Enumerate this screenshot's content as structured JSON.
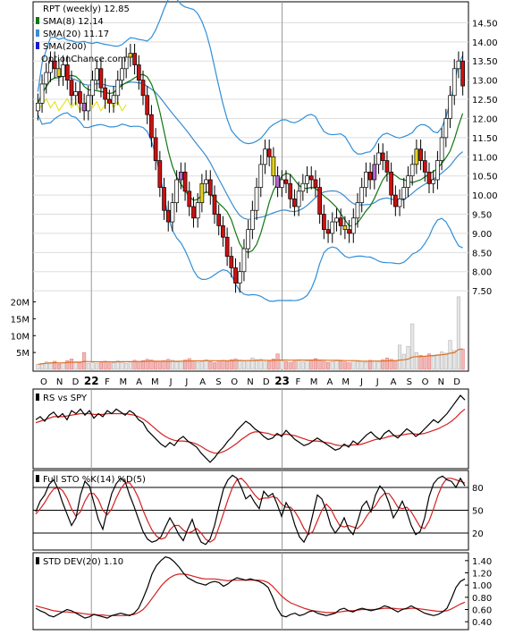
{
  "header": {
    "ticker_line": "RPT (weekly) 12.85",
    "sma8_label": "SMA(8) 12.14",
    "sma20_label": "SMA(20) 11.17",
    "sma200_label": "SMA(200)",
    "brand": "OptionChance.com"
  },
  "colors": {
    "up_candle": "#ffffff",
    "down_candle": "#cc1111",
    "mixed_up": "#e5d21a",
    "purple_candle": "#b666d2",
    "sma8": "#117711",
    "sma20": "#3a8ccf",
    "sma200": "#1a1acc",
    "bollinger": "#2f8fd8",
    "yellow_line": "#e0e000",
    "volume_up": "#e6e6e6",
    "volume_down": "#f3b6b6",
    "volume_avg": "#e07020",
    "rs_line": "#000000",
    "rs_ma": "#d42020",
    "stoch_k": "#000000",
    "stoch_d": "#d42020",
    "std_line": "#000000",
    "std_ma": "#d42020"
  },
  "chart_data": [
    {
      "type": "candlestick",
      "title": "RPT (weekly) 12.85",
      "ylim": [
        7.2,
        15.0
      ],
      "y_ticks": [
        "7.50",
        "8.00",
        "8.50",
        "9.00",
        "9.50",
        "10.00",
        "10.50",
        "11.00",
        "11.50",
        "12.00",
        "12.50",
        "13.00",
        "13.50",
        "14.00",
        "14.50"
      ],
      "y_tick_values": [
        7.5,
        8.0,
        8.5,
        9.0,
        9.5,
        10.0,
        10.5,
        11.0,
        11.5,
        12.0,
        12.5,
        13.0,
        13.5,
        14.0,
        14.5
      ],
      "x_ticks": [
        "O",
        "N",
        "D",
        "22",
        "F",
        "M",
        "A",
        "M",
        "J",
        "J",
        "A",
        "S",
        "O",
        "N",
        "D",
        "23",
        "F",
        "M",
        "A",
        "M",
        "J",
        "J",
        "A",
        "S",
        "O",
        "N",
        "D"
      ],
      "close": [
        12.4,
        12.9,
        13.2,
        13.5,
        13.3,
        13.1,
        13.4,
        13.0,
        12.6,
        12.7,
        12.4,
        12.2,
        12.6,
        13.0,
        13.3,
        12.8,
        12.5,
        12.4,
        12.6,
        13.0,
        13.3,
        13.6,
        13.7,
        13.4,
        13.0,
        12.6,
        12.1,
        11.5,
        10.9,
        10.2,
        9.6,
        9.3,
        9.8,
        10.4,
        10.6,
        10.1,
        9.7,
        9.4,
        9.8,
        10.3,
        10.4,
        10.0,
        9.5,
        9.2,
        8.9,
        8.4,
        8.1,
        7.7,
        8.0,
        8.6,
        9.1,
        9.6,
        10.2,
        10.8,
        11.2,
        11.0,
        10.5,
        10.2,
        10.4,
        10.3,
        9.9,
        9.7,
        10.1,
        10.3,
        10.5,
        10.4,
        10.2,
        9.5,
        9.1,
        9.0,
        9.3,
        9.4,
        9.2,
        9.1,
        9.0,
        9.4,
        9.8,
        10.2,
        10.6,
        10.4,
        10.8,
        11.1,
        10.9,
        10.6,
        10.0,
        9.7,
        9.9,
        10.2,
        10.5,
        10.8,
        11.2,
        10.9,
        10.6,
        10.3,
        10.4,
        10.9,
        11.5,
        12.0,
        12.6,
        13.3,
        13.5,
        12.85
      ],
      "volume_ylabel_ticks": [
        "20M",
        "15M",
        "10M",
        "5M"
      ],
      "volume_ylim": [
        0,
        22
      ],
      "volume": [
        1.5,
        1.8,
        2.2,
        2.0,
        2.4,
        1.6,
        2.0,
        2.6,
        3.1,
        2.2,
        1.9,
        5.0,
        1.8,
        2.1,
        1.7,
        2.3,
        2.4,
        1.9,
        2.0,
        2.5,
        2.1,
        1.8,
        2.2,
        2.7,
        2.4,
        2.6,
        3.0,
        2.8,
        2.5,
        2.3,
        2.6,
        3.0,
        2.7,
        2.2,
        2.4,
        2.8,
        3.2,
        2.6,
        2.1,
        2.4,
        2.9,
        2.3,
        2.0,
        2.5,
        2.7,
        2.4,
        2.9,
        3.1,
        2.8,
        2.5,
        2.7,
        3.4,
        2.9,
        3.0,
        2.2,
        2.4,
        3.1,
        4.6,
        2.6,
        2.3,
        2.1,
        2.4,
        2.8,
        2.2,
        2.5,
        2.6,
        3.2,
        2.7,
        2.4,
        2.1,
        2.3,
        2.8,
        2.5,
        2.2,
        2.0,
        2.6,
        2.3,
        2.4,
        2.1,
        2.7,
        2.5,
        2.2,
        2.9,
        3.4,
        3.0,
        2.6,
        7.2,
        4.5,
        6.8,
        13.5,
        5.0,
        4.2,
        3.8,
        4.6,
        3.9,
        4.4,
        5.2,
        4.8,
        8.6,
        5.6,
        21.5,
        6.0
      ]
    },
    {
      "type": "line",
      "title": "RS vs SPY",
      "series": [
        {
          "values": [
            0.62,
            0.66,
            0.6,
            0.68,
            0.72,
            0.65,
            0.7,
            0.62,
            0.74,
            0.7,
            0.76,
            0.68,
            0.74,
            0.64,
            0.7,
            0.66,
            0.74,
            0.7,
            0.76,
            0.72,
            0.68,
            0.74,
            0.7,
            0.62,
            0.58,
            0.48,
            0.42,
            0.36,
            0.3,
            0.26,
            0.32,
            0.28,
            0.36,
            0.4,
            0.34,
            0.3,
            0.26,
            0.18,
            0.12,
            0.06,
            0.12,
            0.2,
            0.26,
            0.34,
            0.4,
            0.48,
            0.54,
            0.6,
            0.56,
            0.5,
            0.46,
            0.4,
            0.36,
            0.38,
            0.44,
            0.4,
            0.48,
            0.42,
            0.36,
            0.32,
            0.28,
            0.3,
            0.34,
            0.38,
            0.34,
            0.3,
            0.26,
            0.22,
            0.24,
            0.3,
            0.26,
            0.34,
            0.3,
            0.36,
            0.42,
            0.46,
            0.4,
            0.36,
            0.44,
            0.48,
            0.42,
            0.38,
            0.44,
            0.5,
            0.46,
            0.4,
            0.44,
            0.5,
            0.56,
            0.62,
            0.58,
            0.64,
            0.7,
            0.78,
            0.86,
            0.94,
            0.88
          ]
        },
        {
          "values": [
            0.58,
            0.6,
            0.62,
            0.64,
            0.66,
            0.66,
            0.66,
            0.67,
            0.68,
            0.69,
            0.7,
            0.7,
            0.7,
            0.69,
            0.69,
            0.69,
            0.7,
            0.7,
            0.7,
            0.7,
            0.7,
            0.69,
            0.68,
            0.66,
            0.63,
            0.59,
            0.54,
            0.49,
            0.44,
            0.4,
            0.37,
            0.35,
            0.34,
            0.34,
            0.33,
            0.32,
            0.3,
            0.27,
            0.23,
            0.2,
            0.18,
            0.18,
            0.2,
            0.23,
            0.27,
            0.31,
            0.36,
            0.4,
            0.44,
            0.46,
            0.46,
            0.45,
            0.44,
            0.42,
            0.42,
            0.42,
            0.43,
            0.42,
            0.41,
            0.39,
            0.37,
            0.35,
            0.34,
            0.34,
            0.33,
            0.32,
            0.31,
            0.29,
            0.28,
            0.28,
            0.28,
            0.29,
            0.29,
            0.3,
            0.32,
            0.34,
            0.36,
            0.37,
            0.38,
            0.4,
            0.41,
            0.41,
            0.42,
            0.43,
            0.44,
            0.43,
            0.43,
            0.44,
            0.46,
            0.48,
            0.5,
            0.53,
            0.56,
            0.6,
            0.65,
            0.71,
            0.76
          ]
        }
      ]
    },
    {
      "type": "line",
      "title": "Full STO %K(14) %D(5)",
      "ylim": [
        0,
        100
      ],
      "y_ticks": [
        "80",
        "50",
        "20"
      ],
      "y_tick_values": [
        80,
        50,
        20
      ],
      "series": [
        {
          "values": [
            48,
            62,
            70,
            84,
            90,
            78,
            60,
            45,
            30,
            40,
            70,
            88,
            82,
            60,
            38,
            25,
            50,
            72,
            85,
            92,
            88,
            70,
            55,
            38,
            22,
            12,
            8,
            10,
            15,
            28,
            40,
            30,
            18,
            10,
            25,
            38,
            20,
            8,
            5,
            12,
            30,
            55,
            78,
            90,
            96,
            92,
            80,
            65,
            70,
            60,
            52,
            75,
            68,
            72,
            58,
            42,
            60,
            50,
            30,
            15,
            8,
            20,
            45,
            70,
            65,
            50,
            30,
            20,
            28,
            40,
            25,
            18,
            35,
            55,
            62,
            48,
            70,
            82,
            75,
            60,
            40,
            50,
            62,
            48,
            30,
            18,
            22,
            40,
            68,
            85,
            92,
            95,
            90,
            88,
            80,
            92,
            82
          ]
        },
        {
          "values": [
            45,
            52,
            60,
            70,
            78,
            80,
            76,
            66,
            52,
            42,
            48,
            62,
            72,
            72,
            64,
            50,
            44,
            52,
            66,
            78,
            86,
            86,
            78,
            66,
            50,
            36,
            24,
            16,
            12,
            14,
            24,
            30,
            30,
            24,
            20,
            22,
            26,
            20,
            12,
            8,
            12,
            28,
            46,
            64,
            80,
            90,
            92,
            86,
            78,
            70,
            64,
            66,
            66,
            68,
            66,
            58,
            54,
            54,
            48,
            38,
            26,
            18,
            22,
            36,
            50,
            58,
            52,
            40,
            30,
            28,
            30,
            28,
            26,
            32,
            42,
            50,
            56,
            66,
            72,
            72,
            64,
            54,
            52,
            54,
            48,
            38,
            28,
            26,
            36,
            52,
            70,
            84,
            92,
            92,
            90,
            88,
            86
          ]
        }
      ]
    },
    {
      "type": "line",
      "title": "STD DEV(20) 1.10",
      "ylim": [
        0.3,
        1.5
      ],
      "y_ticks": [
        "1.40",
        "1.20",
        "1.00",
        "0.80",
        "0.60",
        "0.40"
      ],
      "y_tick_values": [
        1.4,
        1.2,
        1.0,
        0.8,
        0.6,
        0.4
      ],
      "series": [
        {
          "values": [
            0.62,
            0.58,
            0.55,
            0.5,
            0.48,
            0.52,
            0.56,
            0.6,
            0.58,
            0.54,
            0.5,
            0.46,
            0.48,
            0.52,
            0.5,
            0.48,
            0.46,
            0.5,
            0.52,
            0.54,
            0.52,
            0.5,
            0.54,
            0.62,
            0.78,
            0.96,
            1.18,
            1.32,
            1.4,
            1.46,
            1.44,
            1.38,
            1.3,
            1.2,
            1.12,
            1.08,
            1.04,
            1.02,
            1.0,
            1.04,
            1.06,
            1.04,
            0.98,
            1.02,
            1.08,
            1.12,
            1.1,
            1.08,
            1.1,
            1.08,
            1.06,
            1.02,
            0.96,
            0.8,
            0.62,
            0.5,
            0.48,
            0.52,
            0.54,
            0.5,
            0.52,
            0.56,
            0.58,
            0.54,
            0.52,
            0.5,
            0.52,
            0.54,
            0.6,
            0.62,
            0.58,
            0.56,
            0.6,
            0.62,
            0.6,
            0.58,
            0.6,
            0.62,
            0.66,
            0.64,
            0.6,
            0.56,
            0.6,
            0.62,
            0.66,
            0.62,
            0.58,
            0.54,
            0.52,
            0.5,
            0.52,
            0.56,
            0.62,
            0.78,
            0.96,
            1.06,
            1.1
          ]
        },
        {
          "values": [
            0.66,
            0.64,
            0.62,
            0.6,
            0.58,
            0.57,
            0.56,
            0.56,
            0.55,
            0.55,
            0.54,
            0.53,
            0.52,
            0.52,
            0.51,
            0.51,
            0.5,
            0.5,
            0.5,
            0.5,
            0.5,
            0.51,
            0.52,
            0.55,
            0.6,
            0.68,
            0.78,
            0.88,
            0.98,
            1.06,
            1.12,
            1.16,
            1.18,
            1.18,
            1.17,
            1.15,
            1.13,
            1.11,
            1.1,
            1.1,
            1.1,
            1.09,
            1.08,
            1.07,
            1.08,
            1.08,
            1.08,
            1.08,
            1.08,
            1.08,
            1.08,
            1.07,
            1.04,
            0.98,
            0.9,
            0.82,
            0.76,
            0.71,
            0.68,
            0.65,
            0.62,
            0.6,
            0.58,
            0.57,
            0.56,
            0.55,
            0.55,
            0.55,
            0.56,
            0.57,
            0.58,
            0.58,
            0.59,
            0.6,
            0.6,
            0.6,
            0.6,
            0.61,
            0.62,
            0.62,
            0.62,
            0.61,
            0.61,
            0.61,
            0.62,
            0.62,
            0.61,
            0.6,
            0.59,
            0.58,
            0.57,
            0.57,
            0.58,
            0.61,
            0.65,
            0.69,
            0.72
          ]
        }
      ]
    }
  ]
}
